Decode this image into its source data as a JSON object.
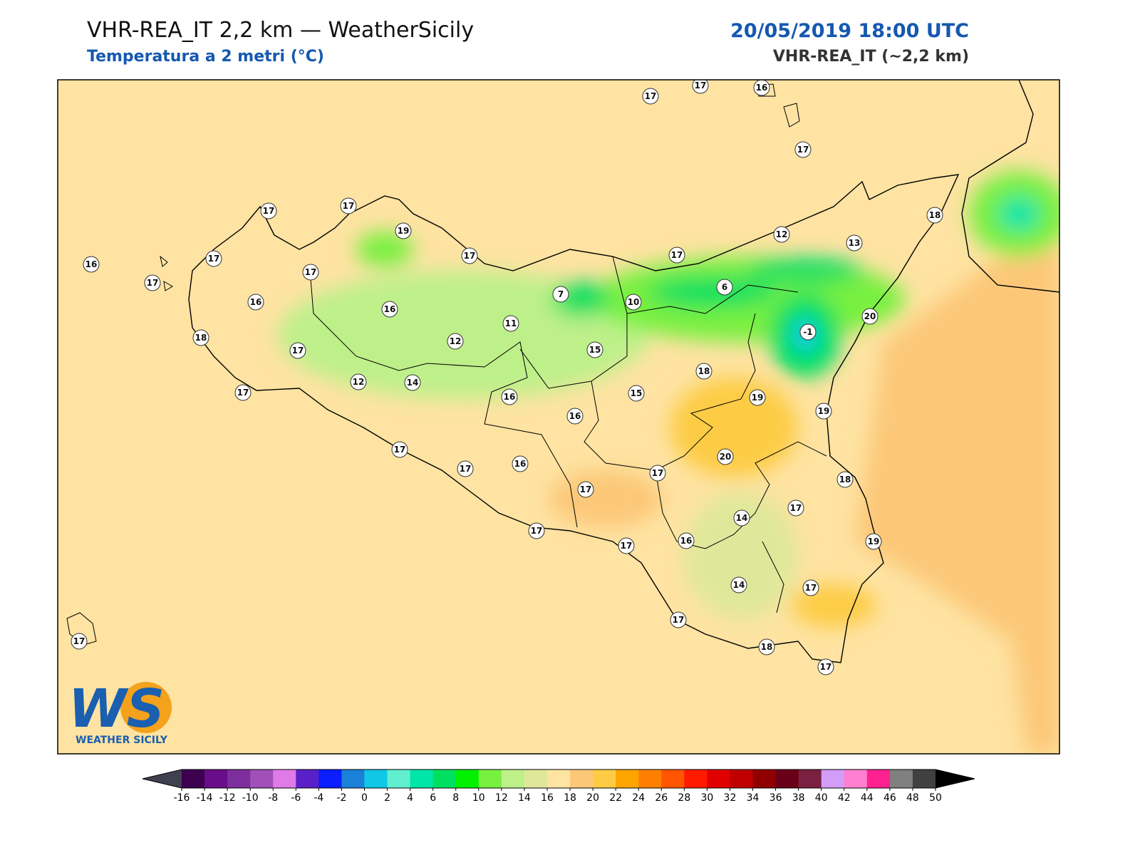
{
  "header": {
    "title": "VHR-REA_IT 2,2 km — WeatherSicily",
    "subtitle": "Temperatura a 2 metri (°C)",
    "date": "20/05/2019 18:00 UTC",
    "model": "VHR-REA_IT (~2,2 km)"
  },
  "map": {
    "stations": [
      17,
      17,
      16,
      17,
      17,
      17,
      19,
      18,
      12,
      13,
      16,
      17,
      17,
      17,
      17,
      17,
      7,
      6,
      10,
      16,
      16,
      20,
      11,
      -1,
      18,
      17,
      12,
      15,
      18,
      12,
      14,
      17,
      16,
      15,
      19,
      16,
      19,
      17,
      20,
      17,
      16,
      17,
      18,
      17,
      17,
      14,
      17,
      16,
      17,
      19,
      14,
      17,
      17,
      18,
      17,
      17
    ]
  },
  "colorbar": {
    "ticks": [
      -16,
      -14,
      -12,
      -10,
      -8,
      -6,
      -4,
      -2,
      0,
      2,
      4,
      6,
      8,
      10,
      12,
      14,
      16,
      18,
      20,
      22,
      24,
      26,
      28,
      30,
      32,
      34,
      36,
      38,
      40,
      42,
      44,
      46,
      48,
      50
    ],
    "colors": [
      "#3d0050",
      "#6a0d8a",
      "#7e2f9e",
      "#a050b8",
      "#e07ae8",
      "#5a20c8",
      "#0a1eff",
      "#1a80d8",
      "#10c8e6",
      "#60f0d0",
      "#00e6a8",
      "#00e060",
      "#00f000",
      "#78f040",
      "#bef08a",
      "#dfe89a",
      "#fee3a2",
      "#fcc878",
      "#fdcc44",
      "#fea500",
      "#ff8000",
      "#ff5500",
      "#ff1a00",
      "#e00000",
      "#c00000",
      "#900000",
      "#6a0018",
      "#7a2040",
      "#d29cf8",
      "#ff80d0",
      "#ff2090",
      "#808080",
      "#404040"
    ],
    "under_color": "#404050",
    "over_color": "#000000"
  },
  "logo": {
    "mark": "WS",
    "name": "WEATHER SICILY"
  }
}
